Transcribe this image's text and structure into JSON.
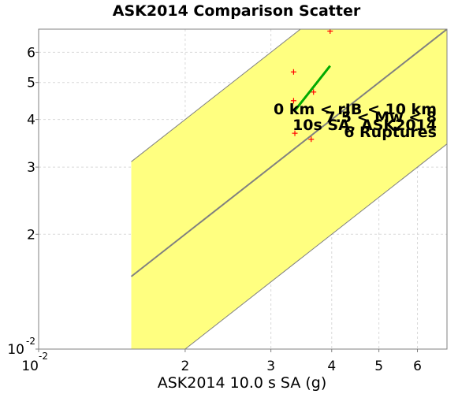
{
  "chart_data": {
    "type": "scatter",
    "title": "ASK2014 Comparison Scatter",
    "xlabel": "ASK2014 10.0 s SA (g)",
    "ylabel": "",
    "x_scale": "log",
    "y_scale": "log",
    "xlim": [
      0.01,
      0.069
    ],
    "ylim": [
      0.01,
      0.069
    ],
    "grid": true,
    "x_ticks": [
      {
        "value": 0.01,
        "label": "10",
        "sup": "-2"
      },
      {
        "value": 0.02,
        "label": "2"
      },
      {
        "value": 0.03,
        "label": "3"
      },
      {
        "value": 0.04,
        "label": "4"
      },
      {
        "value": 0.05,
        "label": "5"
      },
      {
        "value": 0.06,
        "label": "6"
      }
    ],
    "y_ticks": [
      {
        "value": 0.01,
        "label": "10",
        "sup": "-2"
      },
      {
        "value": 0.02,
        "label": "2"
      },
      {
        "value": 0.03,
        "label": "3"
      },
      {
        "value": 0.04,
        "label": "4"
      },
      {
        "value": 0.05,
        "label": "5"
      },
      {
        "value": 0.06,
        "label": "6"
      }
    ],
    "band": {
      "color": "#ffff80",
      "x_range": [
        0.0155,
        0.069
      ],
      "upper_factor": 2,
      "lower_factor": 0.5
    },
    "one_to_one_line": {
      "color": "#808080"
    },
    "band_edge_color": "#808080",
    "points": {
      "color": "#ff0000",
      "marker": "+",
      "values": [
        {
          "x": 0.0397,
          "y": 0.0682
        },
        {
          "x": 0.0334,
          "y": 0.0533
        },
        {
          "x": 0.0334,
          "y": 0.0448
        },
        {
          "x": 0.0367,
          "y": 0.0472
        },
        {
          "x": 0.0336,
          "y": 0.0368
        },
        {
          "x": 0.0363,
          "y": 0.0355
        }
      ]
    },
    "fit_line": {
      "color": "#00aa00",
      "x": [
        0.0336,
        0.0397
      ],
      "y": [
        0.0422,
        0.0553
      ]
    },
    "annotations": [
      "0 km < rJB < 10 km",
      "7.5 < Mw < 8",
      "10s SA, ASK2014",
      "6 Ruptures"
    ]
  }
}
